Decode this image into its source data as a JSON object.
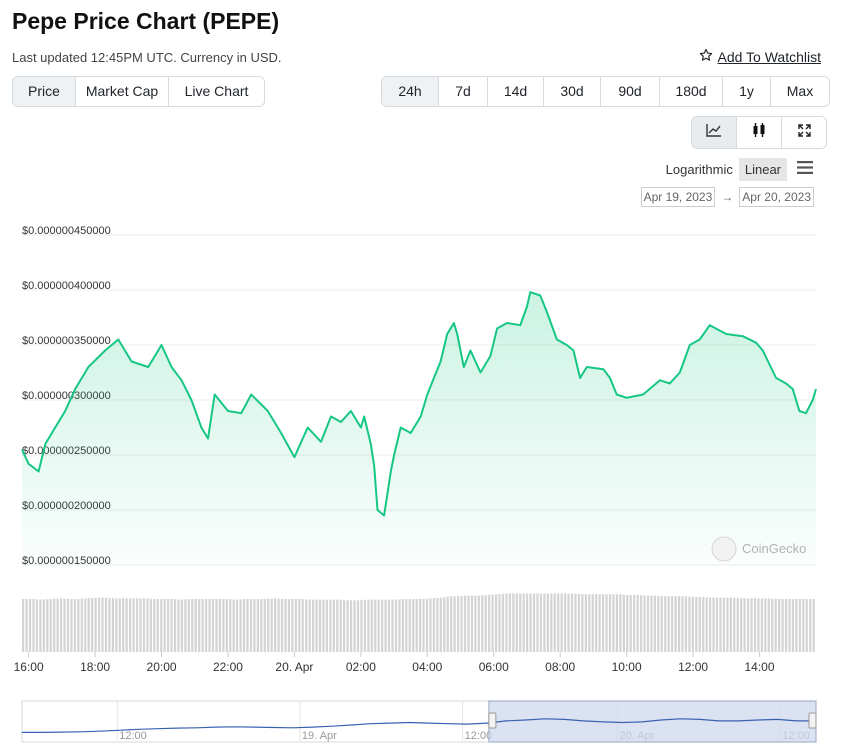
{
  "header": {
    "title": "Pepe Price Chart (PEPE)",
    "updated": "Last updated 12:45PM UTC. Currency in USD.",
    "watchlist_label": "Add To Watchlist"
  },
  "view_tabs": [
    {
      "label": "Price",
      "active": true
    },
    {
      "label": "Market Cap",
      "active": false
    },
    {
      "label": "Live Chart",
      "active": false
    }
  ],
  "range_tabs": [
    {
      "label": "24h",
      "active": true
    },
    {
      "label": "7d",
      "active": false
    },
    {
      "label": "14d",
      "active": false
    },
    {
      "label": "30d",
      "active": false
    },
    {
      "label": "90d",
      "active": false
    },
    {
      "label": "180d",
      "active": false
    },
    {
      "label": "1y",
      "active": false
    },
    {
      "label": "Max",
      "active": false
    }
  ],
  "chart_tools": [
    "line-chart-icon",
    "candlestick-icon",
    "fullscreen-icon"
  ],
  "scale": {
    "logarithmic": "Logarithmic",
    "linear": "Linear",
    "active": "Linear"
  },
  "date_range": {
    "from": "Apr 19, 2023",
    "arrow": "→",
    "to": "Apr 20, 2023"
  },
  "watermark": "CoinGecko",
  "colors": {
    "line": "#16c784",
    "volume": "#d4d4d4",
    "navigator": "#3a62b2",
    "navigator_fill": "#cfd8ec"
  },
  "chart_data": {
    "type": "area",
    "xlabel": "",
    "ylabel": "",
    "ylim": [
      1.5e-07,
      4.5e-07
    ],
    "yticks": [
      "$0.000000450000",
      "$0.000000400000",
      "$0.000000350000",
      "$0.000000300000",
      "$0.000000250000",
      "$0.000000200000",
      "$0.000000150000"
    ],
    "ytick_values": [
      4.5e-07,
      4e-07,
      3.5e-07,
      3e-07,
      2.5e-07,
      2e-07,
      1.5e-07
    ],
    "x_hours_range": [
      15.8,
      39.7
    ],
    "xticks": [
      {
        "label": "16:00",
        "h": 16
      },
      {
        "label": "18:00",
        "h": 18
      },
      {
        "label": "20:00",
        "h": 20
      },
      {
        "label": "22:00",
        "h": 22
      },
      {
        "label": "20. Apr",
        "h": 24
      },
      {
        "label": "02:00",
        "h": 26
      },
      {
        "label": "04:00",
        "h": 28
      },
      {
        "label": "06:00",
        "h": 30
      },
      {
        "label": "08:00",
        "h": 32
      },
      {
        "label": "10:00",
        "h": 34
      },
      {
        "label": "12:00",
        "h": 36
      },
      {
        "label": "14:00",
        "h": 38
      }
    ],
    "series": [
      {
        "x_hours": [
          15.8,
          16.0,
          16.3,
          16.5,
          16.8,
          17.1,
          17.4,
          17.8,
          18.3,
          18.7,
          19.1,
          19.6,
          19.8,
          20.0,
          20.3,
          20.6,
          20.9,
          21.2,
          21.4,
          21.6,
          22.0,
          22.4,
          22.7,
          23.2,
          23.6,
          24.0,
          24.4,
          24.8,
          25.1,
          25.4,
          25.7,
          26.0,
          26.1,
          26.3,
          26.4,
          26.5,
          26.7,
          26.9,
          27.0,
          27.2,
          27.5,
          27.8,
          28.0,
          28.2,
          28.4,
          28.6,
          28.8,
          28.9,
          29.1,
          29.3,
          29.6,
          29.9,
          30.1,
          30.4,
          30.8,
          31.0,
          31.1,
          31.4,
          31.6,
          31.9,
          32.2,
          32.4,
          32.6,
          32.8,
          33.3,
          33.5,
          33.7,
          34.0,
          34.5,
          35.0,
          35.3,
          35.6,
          35.9,
          36.2,
          36.5,
          37.0,
          37.5,
          37.9,
          38.1,
          38.5,
          38.8,
          39.0,
          39.2,
          39.4,
          39.6,
          39.7
        ],
        "values": [
          2.55e-07,
          2.42e-07,
          2.35e-07,
          2.6e-07,
          2.75e-07,
          2.9e-07,
          3.1e-07,
          3.3e-07,
          3.45e-07,
          3.55e-07,
          3.35e-07,
          3.3e-07,
          3.4e-07,
          3.5e-07,
          3.3e-07,
          3.18e-07,
          3e-07,
          2.75e-07,
          2.65e-07,
          3.05e-07,
          2.9e-07,
          2.88e-07,
          3.05e-07,
          2.9e-07,
          2.7e-07,
          2.48e-07,
          2.75e-07,
          2.62e-07,
          2.85e-07,
          2.8e-07,
          2.9e-07,
          2.75e-07,
          2.85e-07,
          2.6e-07,
          2.4e-07,
          2e-07,
          1.95e-07,
          2.35e-07,
          2.5e-07,
          2.75e-07,
          2.7e-07,
          2.85e-07,
          3.05e-07,
          3.2e-07,
          3.35e-07,
          3.6e-07,
          3.7e-07,
          3.6e-07,
          3.3e-07,
          3.45e-07,
          3.25e-07,
          3.4e-07,
          3.65e-07,
          3.7e-07,
          3.68e-07,
          3.85e-07,
          3.98e-07,
          3.95e-07,
          3.8e-07,
          3.55e-07,
          3.5e-07,
          3.45e-07,
          3.2e-07,
          3.3e-07,
          3.28e-07,
          3.2e-07,
          3.05e-07,
          3.02e-07,
          3.05e-07,
          3.18e-07,
          3.15e-07,
          3.25e-07,
          3.5e-07,
          3.55e-07,
          3.68e-07,
          3.6e-07,
          3.58e-07,
          3.52e-07,
          3.45e-07,
          3.2e-07,
          3.15e-07,
          3.1e-07,
          2.9e-07,
          2.88e-07,
          3e-07,
          3.1e-07
        ]
      }
    ],
    "volume_relative": [
      0.78,
      0.78,
      0.77,
      0.78,
      0.79,
      0.78,
      0.78,
      0.79,
      0.8,
      0.8,
      0.79,
      0.79,
      0.79,
      0.79,
      0.78,
      0.78,
      0.78,
      0.77,
      0.78,
      0.78,
      0.78,
      0.78,
      0.78,
      0.77,
      0.78,
      0.78,
      0.78,
      0.79,
      0.78,
      0.78,
      0.78,
      0.77,
      0.77,
      0.77,
      0.77,
      0.76,
      0.76,
      0.77,
      0.77,
      0.77,
      0.77,
      0.78,
      0.78,
      0.78,
      0.79,
      0.8,
      0.82,
      0.82,
      0.83,
      0.83,
      0.84,
      0.85,
      0.86,
      0.86,
      0.86,
      0.86,
      0.86,
      0.86,
      0.86,
      0.86,
      0.85,
      0.85,
      0.85,
      0.85,
      0.85,
      0.84,
      0.84,
      0.83,
      0.83,
      0.82,
      0.82,
      0.82,
      0.81,
      0.81,
      0.8,
      0.8,
      0.8,
      0.79,
      0.79,
      0.79,
      0.79,
      0.78,
      0.78,
      0.78,
      0.78,
      0.78
    ],
    "navigator": {
      "labels": [
        {
          "label": "12:00",
          "f": 0.12
        },
        {
          "label": "19. Apr",
          "f": 0.35
        },
        {
          "label": "12:00",
          "f": 0.555
        },
        {
          "label": "20. Apr",
          "f": 0.75
        },
        {
          "label": "12:00",
          "f": 0.955
        }
      ],
      "selection": [
        0.588,
        1.0
      ],
      "values": [
        0.18,
        0.18,
        0.19,
        0.2,
        0.22,
        0.25,
        0.28,
        0.3,
        0.32,
        0.33,
        0.35,
        0.36,
        0.35,
        0.34,
        0.33,
        0.35,
        0.38,
        0.42,
        0.46,
        0.48,
        0.5,
        0.48,
        0.46,
        0.45,
        0.48,
        0.55,
        0.58,
        0.62,
        0.6,
        0.55,
        0.52,
        0.5,
        0.52,
        0.58,
        0.62,
        0.6,
        0.55,
        0.55,
        0.58,
        0.6,
        0.55,
        0.55
      ]
    }
  }
}
